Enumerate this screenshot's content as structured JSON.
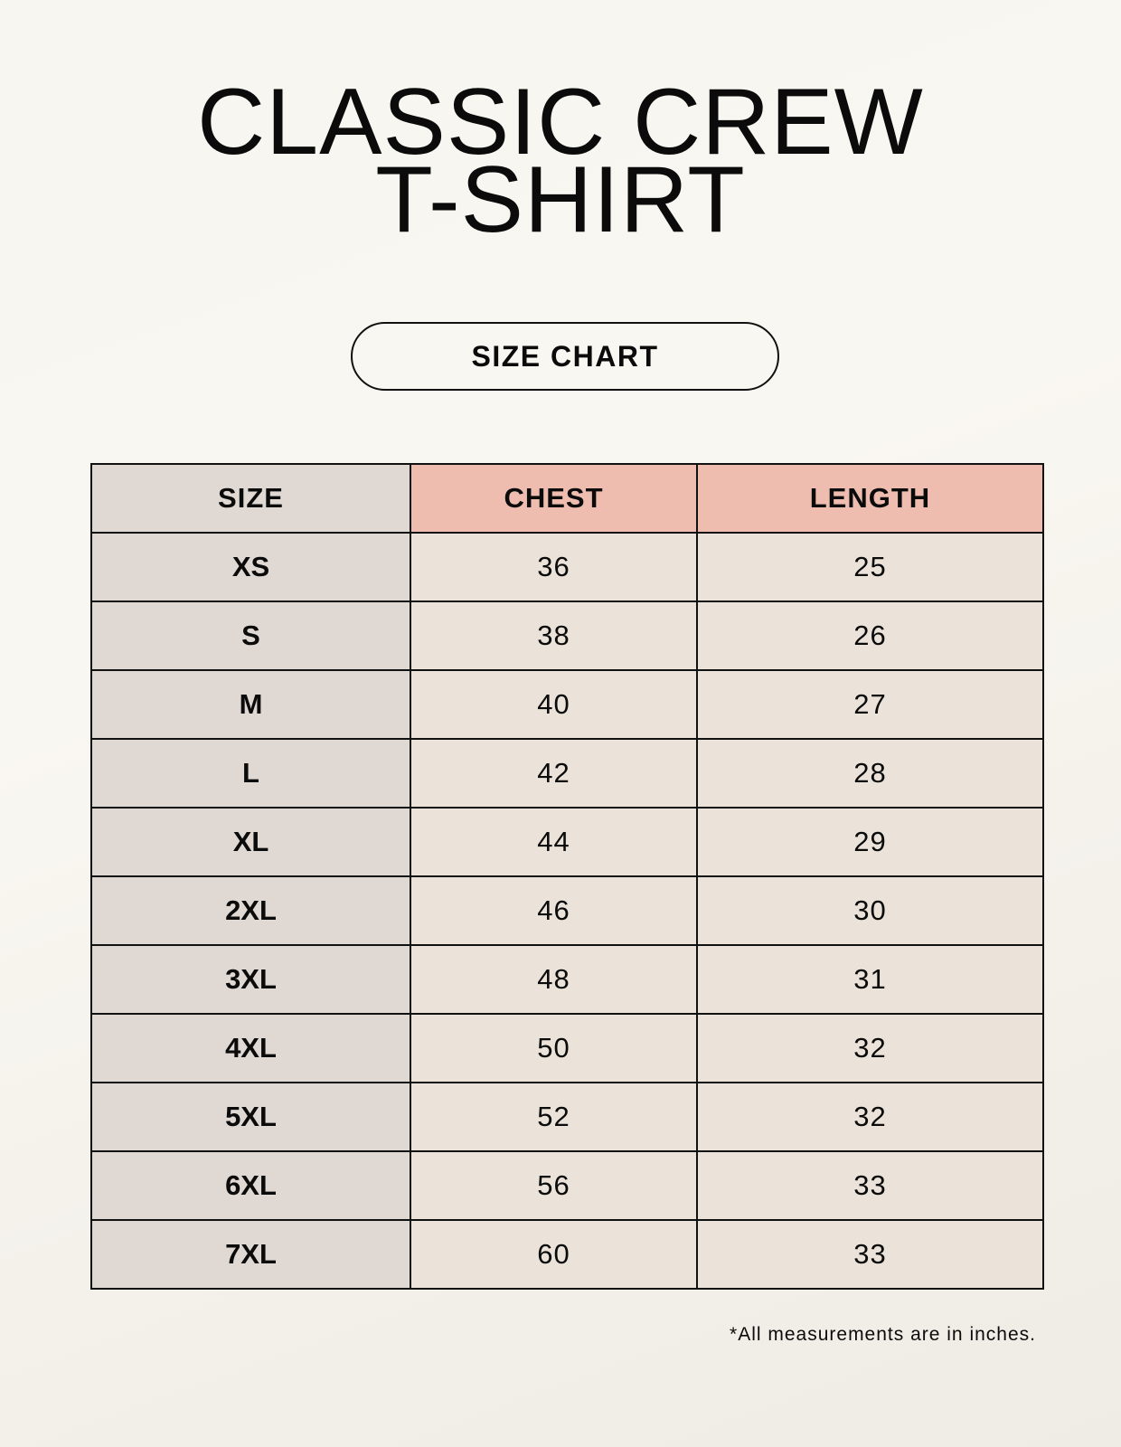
{
  "title": {
    "line1": "CLASSIC CREW",
    "line2": "T-SHIRT"
  },
  "badge": "SIZE CHART",
  "table": {
    "headers": [
      "SIZE",
      "CHEST",
      "LENGTH"
    ],
    "rows": [
      [
        "XS",
        "36",
        "25"
      ],
      [
        "S",
        "38",
        "26"
      ],
      [
        "M",
        "40",
        "27"
      ],
      [
        "L",
        "42",
        "28"
      ],
      [
        "XL",
        "44",
        "29"
      ],
      [
        "2XL",
        "46",
        "30"
      ],
      [
        "3XL",
        "48",
        "31"
      ],
      [
        "4XL",
        "50",
        "32"
      ],
      [
        "5XL",
        "52",
        "32"
      ],
      [
        "6XL",
        "56",
        "33"
      ],
      [
        "7XL",
        "60",
        "33"
      ]
    ]
  },
  "footnote": "*All measurements are in inches.",
  "colors": {
    "size_column": "#e0d8d2",
    "header_accent": "#eebdaf",
    "value_cells": "#ebe3d9"
  }
}
